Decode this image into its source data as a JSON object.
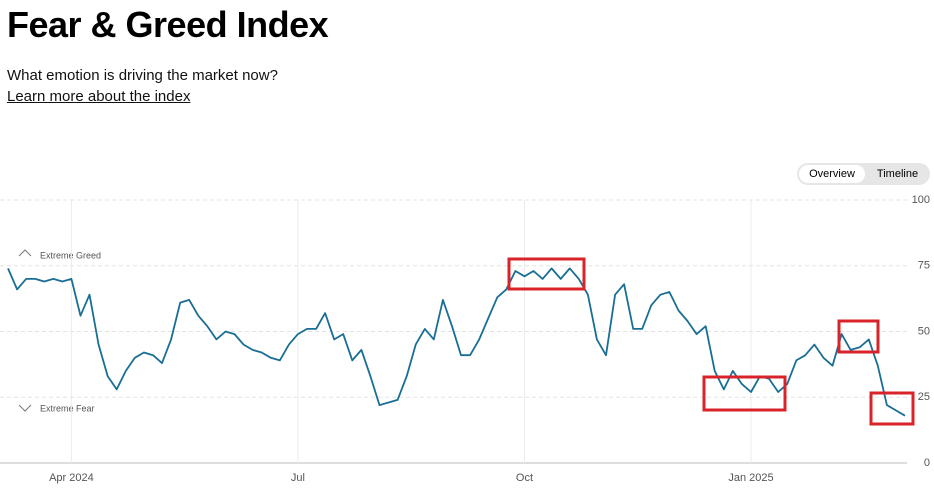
{
  "header": {
    "title": "Fear & Greed Index",
    "subtitle": "What emotion is driving the market now?",
    "link": "Learn more about the index"
  },
  "tabs": [
    "Overview",
    "Timeline"
  ],
  "chart_data": {
    "type": "line",
    "annotations": [
      "Extreme Greed",
      "Extreme Fear"
    ],
    "categories": [
      null,
      null,
      null,
      null,
      null,
      null,
      null,
      "Apr 2024",
      null,
      null,
      null,
      null,
      null,
      null,
      null,
      null,
      null,
      null,
      null,
      null,
      null,
      null,
      null,
      null,
      null,
      null,
      null,
      null,
      null,
      null,
      null,
      null,
      "Jul",
      null,
      null,
      null,
      null,
      null,
      null,
      null,
      null,
      null,
      null,
      null,
      null,
      null,
      null,
      null,
      null,
      null,
      null,
      null,
      null,
      null,
      null,
      null,
      null,
      "Oct",
      null,
      null,
      null,
      null,
      null,
      null,
      null,
      null,
      null,
      null,
      null,
      null,
      null,
      null,
      null,
      null,
      null,
      null,
      null,
      null,
      null,
      null,
      null,
      null,
      "Jan 2025",
      null,
      null,
      null,
      null,
      null,
      null,
      null,
      null,
      null,
      null,
      null,
      null,
      null,
      null,
      null,
      null,
      null
    ],
    "values": [
      74,
      66,
      70,
      70,
      69,
      70,
      69,
      70,
      56,
      64,
      45,
      33,
      28,
      35,
      40,
      42,
      41,
      38,
      47,
      61,
      62,
      56,
      52,
      47,
      50,
      49,
      45,
      43,
      42,
      40,
      39,
      45,
      49,
      51,
      51,
      57,
      47,
      49,
      39,
      43,
      33,
      22,
      23,
      24,
      33,
      45,
      51,
      47,
      62,
      52,
      41,
      41,
      47,
      55,
      63,
      66,
      73,
      71,
      73,
      70,
      74,
      70,
      74,
      70,
      64,
      47,
      41,
      64,
      68,
      51,
      51,
      60,
      64,
      65,
      58,
      54,
      49,
      52,
      35,
      28,
      35,
      30,
      27,
      33,
      32,
      27,
      30,
      39,
      41,
      45,
      40,
      37,
      49,
      43,
      44,
      47,
      37,
      22,
      20,
      18
    ],
    "color": "#1a6e94",
    "ylim": [
      0,
      100
    ],
    "yticks": [
      0,
      25,
      50,
      75,
      100
    ],
    "grid": true
  }
}
